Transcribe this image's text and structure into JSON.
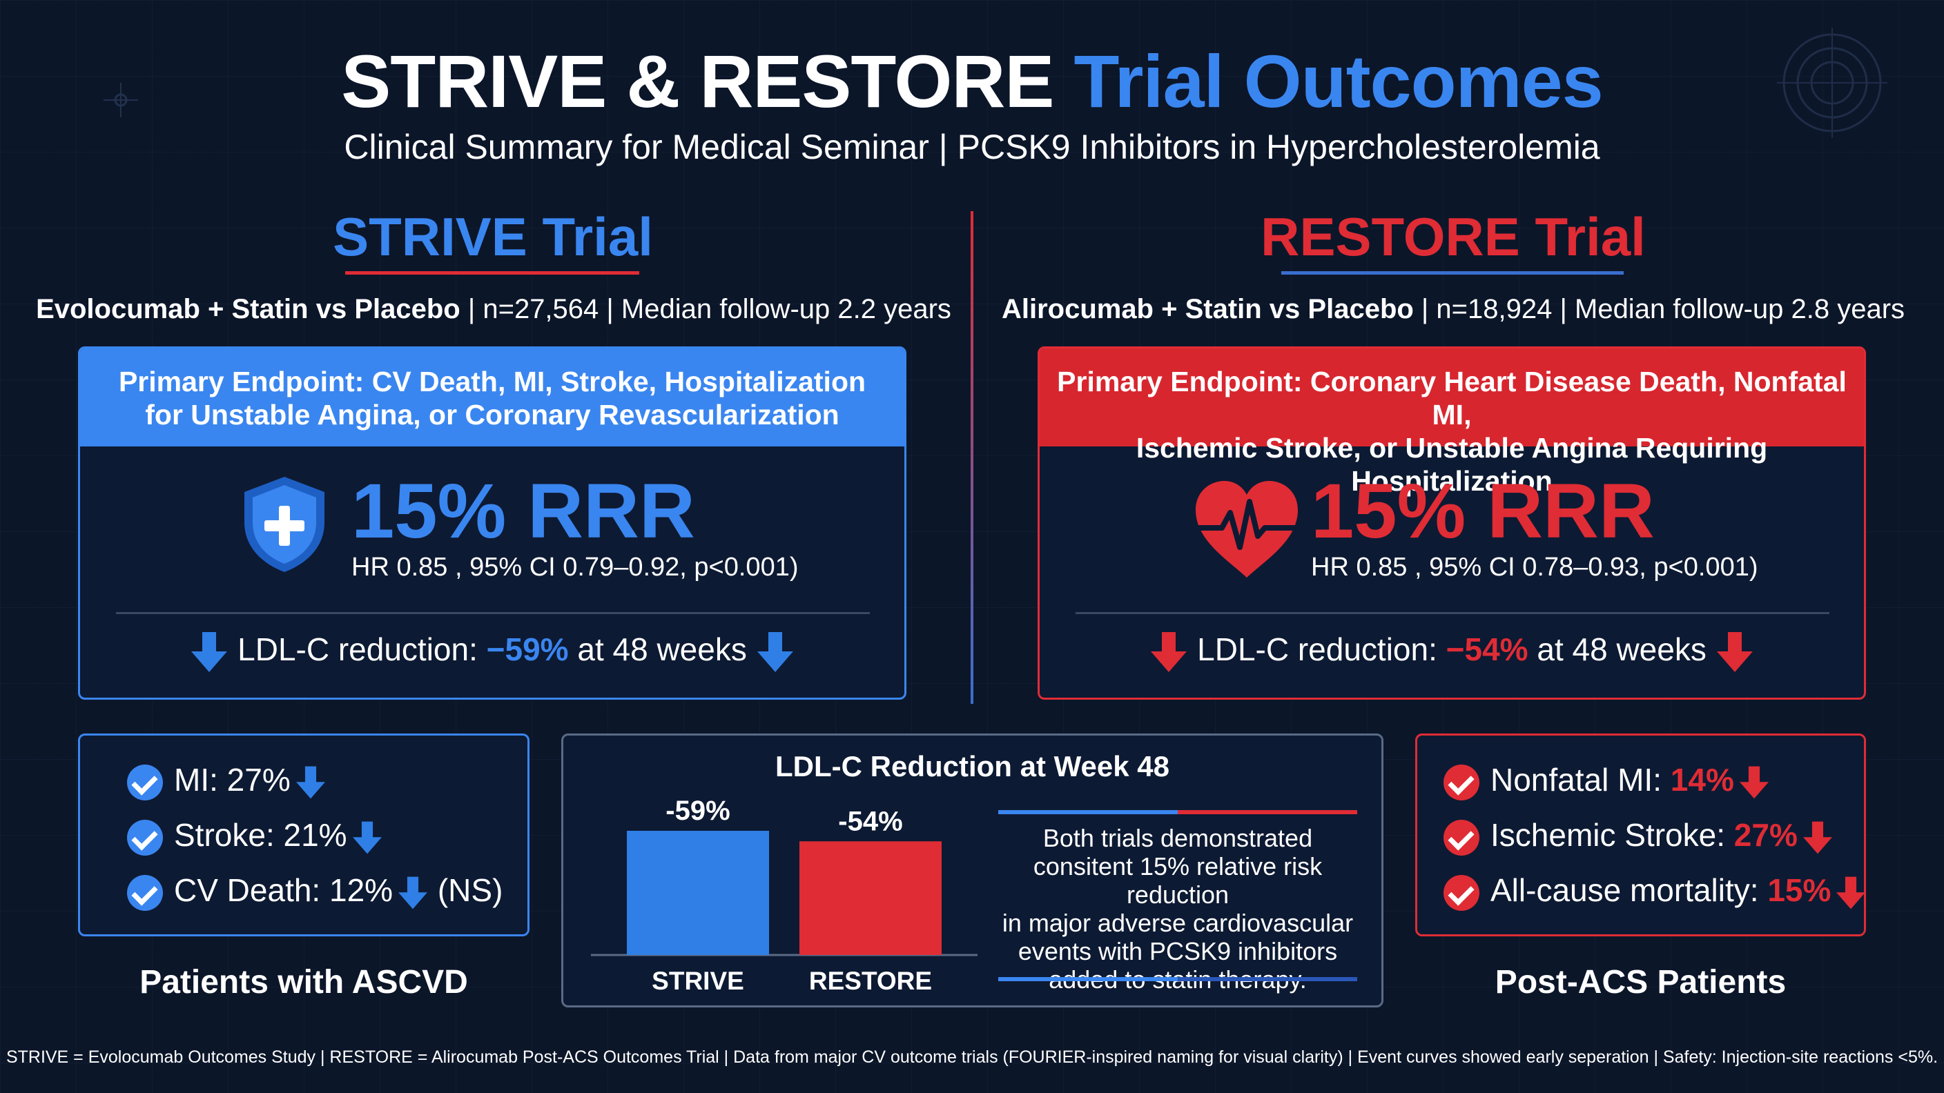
{
  "header": {
    "title_main": "STRIVE & RESTORE",
    "title_accent": "Trial Outcomes",
    "subtitle": "Clinical Summary for Medical Seminar | PCSK9 Inhibitors in Hypercholesterolemia"
  },
  "strive": {
    "heading": "STRIVE Trial",
    "meta_bold": "Evolocumab + Statin vs Placebo",
    "meta_rest": " | n=27,564 | Median follow-up 2.2 years",
    "endpoint_line1": "Primary Endpoint: CV Death, MI, Stroke, Hospitalization",
    "endpoint_line2": "for Unstable Angina, or Coronary Revascularization",
    "rrr": "15% RRR",
    "hr": "HR 0.85 , 95% CI 0.79–0.92, p<0.001)",
    "ldl_prefix": "LDL-C reduction: ",
    "ldl_value": "−59%",
    "ldl_suffix": " at 48 weeks",
    "stats": [
      {
        "label": "MI: 27%",
        "suffix": ""
      },
      {
        "label": "Stroke: 21%",
        "suffix": ""
      },
      {
        "label": "CV Death: 12%",
        "suffix": " (NS)"
      }
    ],
    "population": "Patients with ASCVD",
    "icon": "shield-plus-icon",
    "color": "#3a86f0"
  },
  "restore": {
    "heading": "RESTORE Trial",
    "meta_bold": "Alirocumab + Statin vs Placebo",
    "meta_rest": " | n=18,924 | Median follow-up 2.8 years",
    "endpoint_line1": "Primary Endpoint: Coronary Heart Disease Death, Nonfatal MI,",
    "endpoint_line2": "Ischemic Stroke, or Unstable Angina Requiring Hospitalization",
    "rrr": "15% RRR",
    "hr": "HR 0.85 , 95% CI 0.78–0.93, p<0.001)",
    "ldl_prefix": "LDL-C reduction: ",
    "ldl_value": "−54%",
    "ldl_suffix": " at 48 weeks",
    "stats": [
      {
        "label": "Nonfatal MI: ",
        "value": "14%"
      },
      {
        "label": "Ischemic Stroke: ",
        "value": "27%"
      },
      {
        "label": "All-cause mortality: ",
        "value": "15%"
      }
    ],
    "population": "Post-ACS Patients",
    "icon": "heartbeat-icon",
    "color": "#e02c35"
  },
  "chart_data": {
    "type": "bar",
    "title": "LDL-C Reduction at Week 48",
    "categories": [
      "STRIVE",
      "RESTORE"
    ],
    "values": [
      -59,
      -54
    ],
    "data_labels": [
      "-59%",
      "-54%"
    ],
    "colors": [
      "#2f7fe6",
      "#e02c35"
    ]
  },
  "note": {
    "lines": [
      "Both trials demonstrated",
      "consitent 15% relative risk reduction",
      "in major adverse cardiovascular",
      "events with PCSK9 inhibitors",
      "added to statin therapy."
    ]
  },
  "footnote": "STRIVE = Evolocumab Outcomes Study | RESTORE = Alirocumab Post-ACS Outcomes Trial | Data from major CV outcome trials (FOURIER-inspired naming for visual clarity) | Event curves showed early seperation | Safety: Injection-site reactions <5%."
}
